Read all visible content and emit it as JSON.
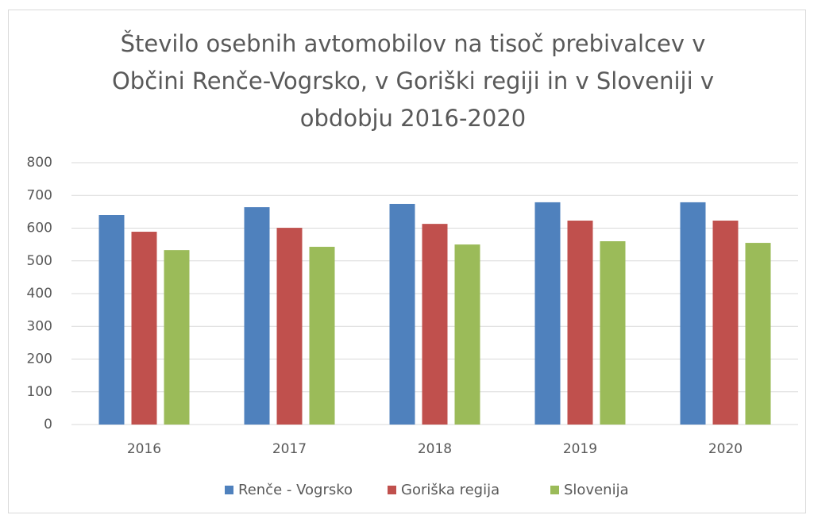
{
  "chart_data": {
    "type": "bar",
    "title": "Število osebnih avtomobilov na tisoč prebivalcev v Občini Renče-Vogrsko,  v Goriški regiji in v Sloveniji v obdobju 2016-2020",
    "categories": [
      "2016",
      "2017",
      "2018",
      "2019",
      "2020"
    ],
    "series": [
      {
        "name": "Renče - Vogrsko",
        "color": "#4f81bd",
        "values": [
          640,
          664,
          674,
          679,
          679
        ]
      },
      {
        "name": "Goriška regija",
        "color": "#c0504d",
        "values": [
          589,
          601,
          613,
          623,
          623
        ]
      },
      {
        "name": "Slovenija",
        "color": "#9bbb59",
        "values": [
          533,
          543,
          550,
          560,
          555
        ]
      }
    ],
    "ylim": [
      0,
      800
    ],
    "yticks": [
      0,
      100,
      200,
      300,
      400,
      500,
      600,
      700,
      800
    ],
    "grid": true,
    "legend": "bottom"
  }
}
